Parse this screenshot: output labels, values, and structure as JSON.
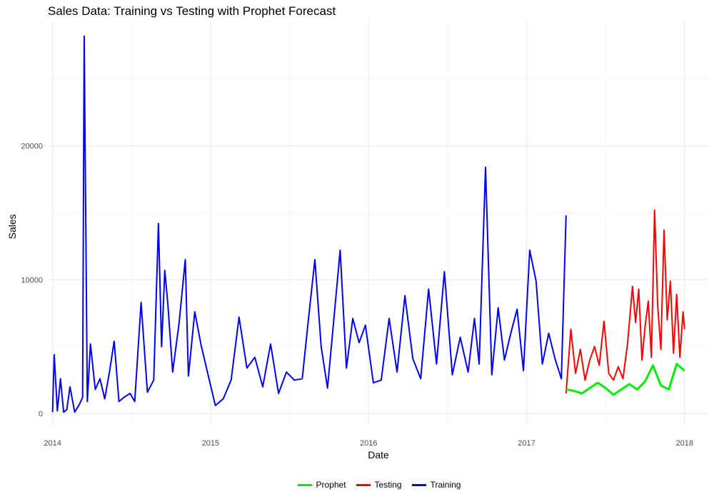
{
  "chart_data": {
    "type": "line",
    "title": "Sales Data: Training vs Testing with Prophet Forecast",
    "xlabel": "Date",
    "ylabel": "Sales",
    "xlim": [
      2013.97,
      2018.15
    ],
    "ylim": [
      -900,
      29300
    ],
    "x_ticks": [
      2014,
      2015,
      2016,
      2017,
      2018
    ],
    "x_tick_labels": [
      "2014",
      "2015",
      "2016",
      "2017",
      "2018"
    ],
    "y_ticks": [
      0,
      10000,
      20000
    ],
    "y_tick_labels": [
      "0",
      "10000",
      "20000"
    ],
    "grid": true,
    "legend_position": "bottom",
    "series": [
      {
        "name": "Training",
        "color": "#0000ff",
        "x": [
          2014.0,
          2014.01,
          2014.03,
          2014.05,
          2014.07,
          2014.09,
          2014.11,
          2014.14,
          2014.17,
          2014.19,
          2014.2,
          2014.22,
          2014.24,
          2014.27,
          2014.3,
          2014.33,
          2014.36,
          2014.39,
          2014.42,
          2014.45,
          2014.49,
          2014.52,
          2014.56,
          2014.6,
          2014.64,
          2014.67,
          2014.69,
          2014.71,
          2014.73,
          2014.76,
          2014.8,
          2014.84,
          2014.86,
          2014.9,
          2014.94,
          2014.98,
          2015.03,
          2015.08,
          2015.13,
          2015.18,
          2015.23,
          2015.28,
          2015.33,
          2015.38,
          2015.43,
          2015.48,
          2015.53,
          2015.58,
          2015.62,
          2015.66,
          2015.7,
          2015.74,
          2015.78,
          2015.82,
          2015.86,
          2015.9,
          2015.94,
          2015.98,
          2016.03,
          2016.08,
          2016.13,
          2016.18,
          2016.23,
          2016.28,
          2016.33,
          2016.38,
          2016.43,
          2016.48,
          2016.53,
          2016.58,
          2016.63,
          2016.67,
          2016.7,
          2016.74,
          2016.78,
          2016.82,
          2016.86,
          2016.9,
          2016.94,
          2016.98,
          2017.02,
          2017.06,
          2017.1,
          2017.14,
          2017.18,
          2017.22,
          2017.25
        ],
        "values": [
          100,
          4400,
          200,
          2600,
          100,
          300,
          2000,
          100,
          700,
          1200,
          28200,
          900,
          5200,
          1800,
          2600,
          1100,
          3100,
          5400,
          900,
          1200,
          1500,
          900,
          8300,
          1600,
          2500,
          14200,
          5000,
          10700,
          8100,
          3100,
          6700,
          11500,
          2800,
          7600,
          5100,
          3100,
          600,
          1100,
          2500,
          7200,
          3400,
          4200,
          2000,
          5200,
          1500,
          3100,
          2500,
          2600,
          7100,
          11500,
          5000,
          1900,
          7000,
          12200,
          3400,
          7100,
          5300,
          6600,
          2300,
          2500,
          7100,
          3100,
          8800,
          4100,
          2600,
          9300,
          3700,
          10600,
          2900,
          5700,
          3100,
          7100,
          3700,
          18400,
          2900,
          7900,
          4000,
          6000,
          7800,
          3200,
          12200,
          9900,
          3700,
          6000,
          4100,
          2600,
          14800
        ]
      },
      {
        "name": "Testing",
        "color": "#ff0000",
        "x": [
          2017.25,
          2017.28,
          2017.31,
          2017.34,
          2017.37,
          2017.4,
          2017.43,
          2017.46,
          2017.49,
          2017.52,
          2017.55,
          2017.58,
          2017.61,
          2017.64,
          2017.67,
          2017.69,
          2017.71,
          2017.73,
          2017.75,
          2017.77,
          2017.79,
          2017.81,
          2017.83,
          2017.85,
          2017.87,
          2017.89,
          2017.91,
          2017.93,
          2017.95,
          2017.97,
          2017.99,
          2018.0
        ],
        "values": [
          1500,
          6300,
          3000,
          4800,
          2500,
          4000,
          5000,
          3600,
          6900,
          3000,
          2500,
          3500,
          2600,
          5300,
          9500,
          6800,
          9300,
          4000,
          6500,
          8400,
          4200,
          15200,
          8000,
          4800,
          13700,
          7000,
          9900,
          4500,
          8900,
          4200,
          7600,
          6300
        ]
      },
      {
        "name": "Prophet",
        "color": "#00ee00",
        "x": [
          2017.25,
          2017.3,
          2017.35,
          2017.4,
          2017.45,
          2017.5,
          2017.55,
          2017.6,
          2017.65,
          2017.7,
          2017.75,
          2017.8,
          2017.85,
          2017.9,
          2017.95,
          2018.0
        ],
        "values": [
          1800,
          1700,
          1500,
          1900,
          2300,
          1900,
          1400,
          1800,
          2200,
          1800,
          2400,
          3600,
          2100,
          1800,
          3700,
          3200
        ]
      }
    ]
  }
}
